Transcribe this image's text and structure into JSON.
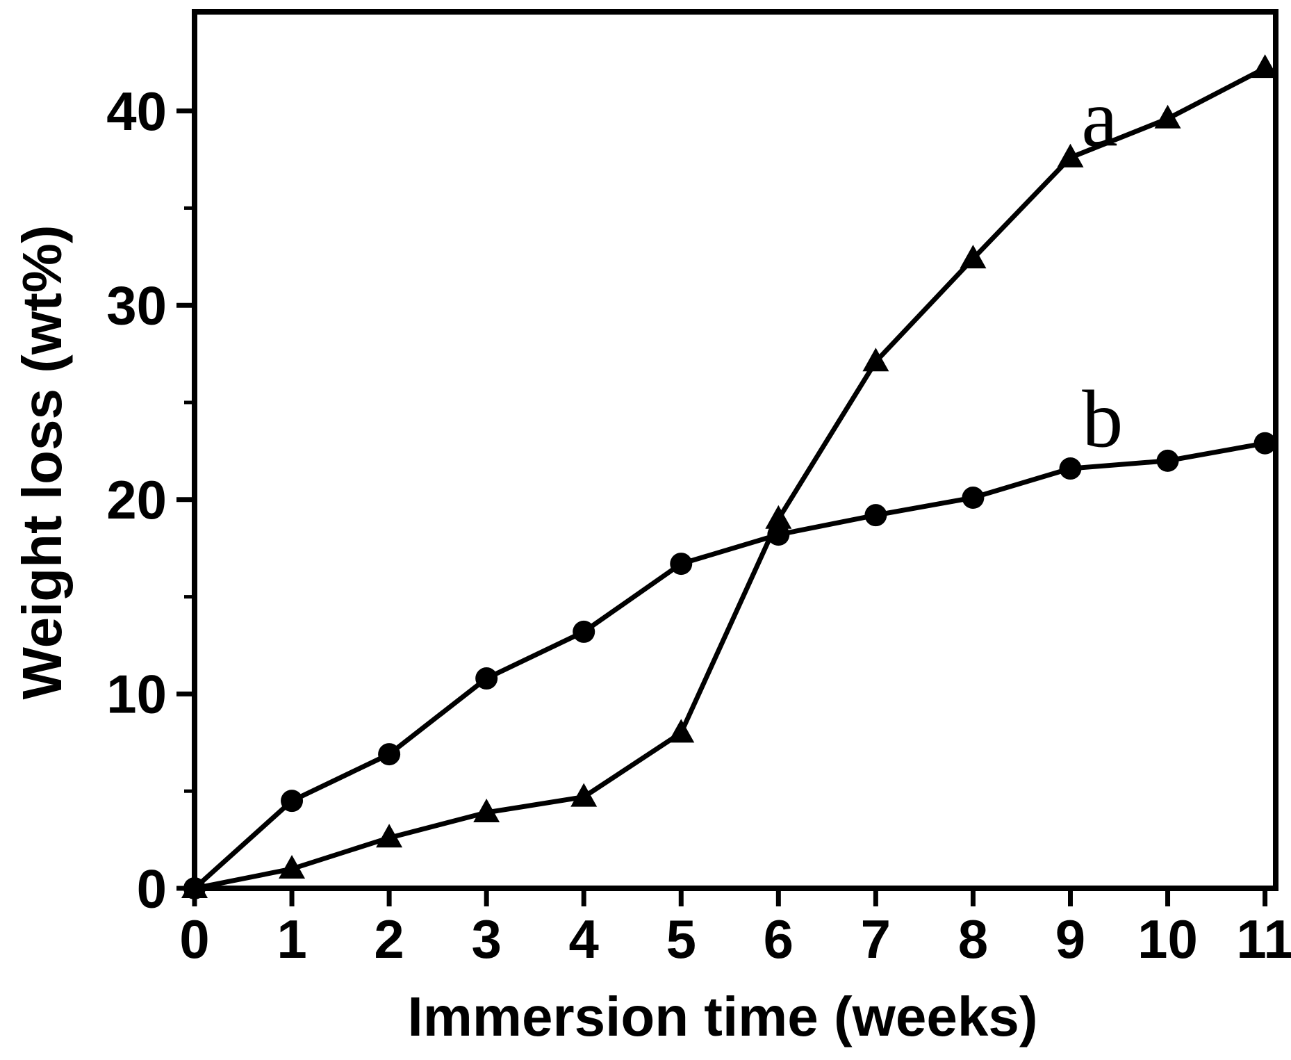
{
  "figure": {
    "background_color": "#ffffff",
    "foreground_color": "#000000"
  },
  "chart_data": {
    "type": "line",
    "title": "",
    "xlabel": "Immersion time (weeks)",
    "ylabel": "Weight loss (wt%)",
    "x": [
      0,
      1,
      2,
      3,
      4,
      5,
      6,
      7,
      8,
      9,
      10,
      11
    ],
    "series": [
      {
        "name": "a",
        "marker": "triangle",
        "values": [
          0,
          1.0,
          2.6,
          3.9,
          4.7,
          8.0,
          19.0,
          27.1,
          32.4,
          37.6,
          39.6,
          42.2
        ],
        "label": "a",
        "label_anchor": {
          "x": 9.3,
          "y": 39.7
        }
      },
      {
        "name": "b",
        "marker": "circle",
        "values": [
          0,
          4.5,
          6.9,
          10.8,
          13.2,
          16.7,
          18.2,
          19.2,
          20.1,
          21.6,
          22.0,
          22.9
        ],
        "label": "b",
        "label_anchor": {
          "x": 9.33,
          "y": 24.2
        }
      }
    ],
    "xlim": [
      0,
      11.11
    ],
    "ylim": [
      0,
      45.1
    ],
    "x_ticks": [
      0,
      1,
      2,
      3,
      4,
      5,
      6,
      7,
      8,
      9,
      10,
      11
    ],
    "y_ticks_major": [
      0,
      10,
      20,
      30,
      40
    ],
    "y_ticks_minor": [
      5,
      15,
      25,
      35
    ],
    "grid": false,
    "legend_position": "none",
    "line_color": "#000000",
    "background": "#ffffff"
  }
}
